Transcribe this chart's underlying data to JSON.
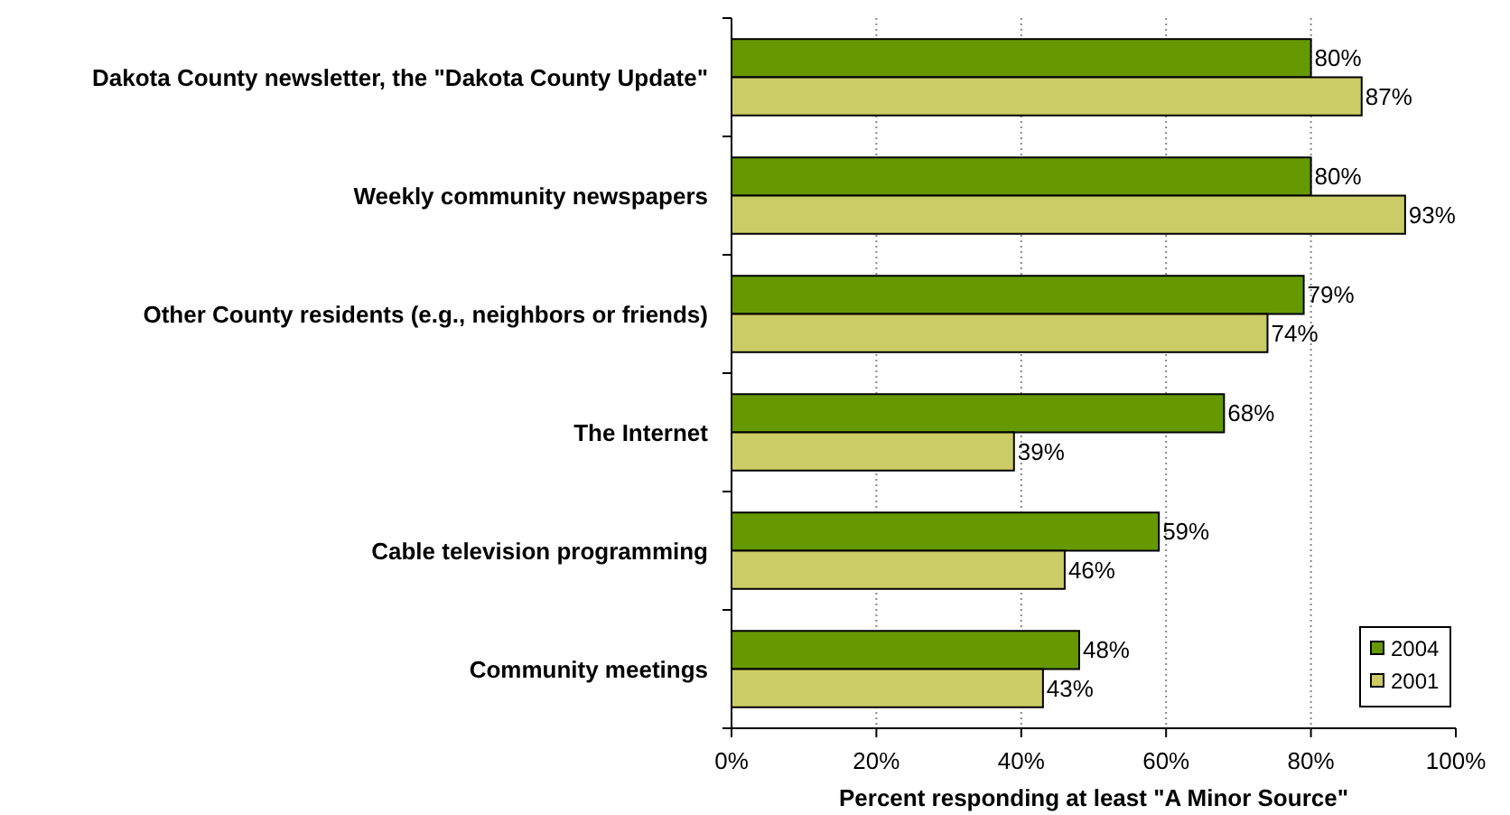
{
  "chart_data": {
    "type": "bar",
    "orientation": "horizontal",
    "xlabel": "Percent responding at least \"A Minor Source\"",
    "categories": [
      "Dakota County newsletter, the \"Dakota County Update\"",
      "Weekly community newspapers",
      "Other County residents (e.g., neighbors or friends)",
      "The Internet",
      "Cable television programming",
      "Community meetings"
    ],
    "series": [
      {
        "name": "2004",
        "color": "#669900",
        "values": [
          80,
          80,
          79,
          68,
          59,
          48
        ]
      },
      {
        "name": "2001",
        "color": "#cccc66",
        "values": [
          87,
          93,
          74,
          39,
          46,
          43
        ]
      }
    ],
    "xlim": [
      0,
      100
    ],
    "xticks": [
      {
        "value": 0,
        "label": "0%"
      },
      {
        "value": 20,
        "label": "20%"
      },
      {
        "value": 40,
        "label": "40%"
      },
      {
        "value": 60,
        "label": "60%"
      },
      {
        "value": 80,
        "label": "80%"
      },
      {
        "value": 100,
        "label": "100%"
      }
    ],
    "value_labels": [
      [
        "80%",
        "80%",
        "79%",
        "68%",
        "59%",
        "48%"
      ],
      [
        "87%",
        "93%",
        "74%",
        "39%",
        "46%",
        "43%"
      ]
    ],
    "grid": "x",
    "line_style": "dotted",
    "legend": "bottom right"
  }
}
